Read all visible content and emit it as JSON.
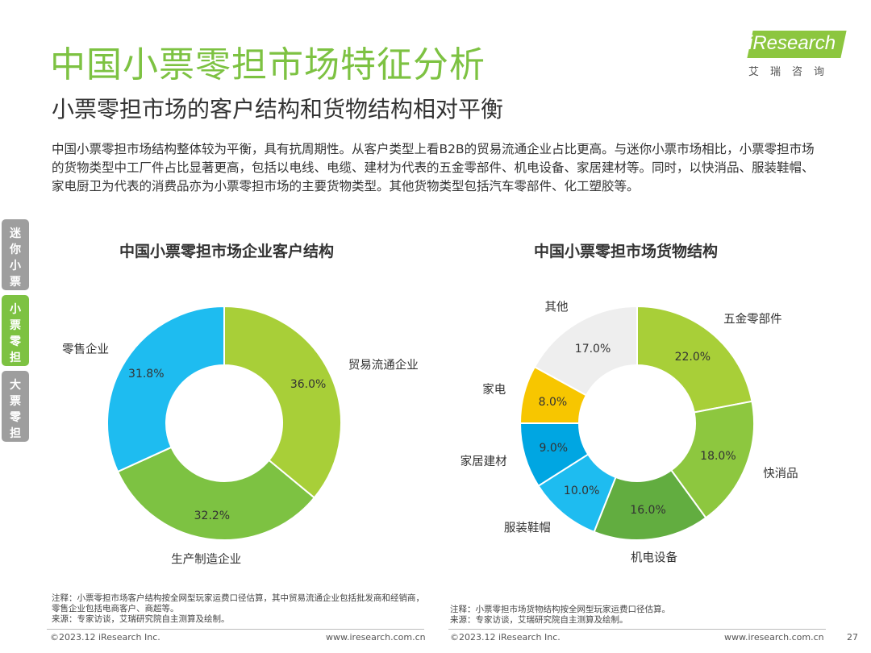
{
  "header": {
    "title": "中国小票零担市场特征分析",
    "subtitle": "小票零担市场的客户结构和货物结构相对平衡",
    "logo_text": "iResearch",
    "logo_cn": "艾瑞咨询"
  },
  "intro": "中国小票零担市场结构整体较为平衡，具有抗周期性。从客户类型上看B2B的贸易流通企业占比更高。与迷你小票市场相比，小票零担市场的货物类型中工厂件占比显著更高，包括以电线、电缆、建材为代表的五金零部件、机电设备、家居建材等。同时，以快消品、服装鞋帽、家电厨卫为代表的消费品亦为小票零担市场的主要货物类型。其他货物类型包括汽车零部件、化工塑胶等。",
  "side_tabs": [
    {
      "chars": [
        "迷",
        "你",
        "小",
        "票"
      ]
    },
    {
      "chars": [
        "小",
        "票",
        "零",
        "担"
      ]
    },
    {
      "chars": [
        "大",
        "票",
        "零",
        "担"
      ]
    }
  ],
  "chart_data": [
    {
      "type": "pie",
      "title": "中国小票零担市场企业客户结构",
      "labels": [
        "贸易流通企业",
        "生产制造企业",
        "零售企业"
      ],
      "values": [
        36.0,
        32.2,
        31.8
      ],
      "value_labels": [
        "36.0%",
        "32.2%",
        "31.8%"
      ],
      "colors": [
        "#a8cf38",
        "#7dc242",
        "#1ebcf0"
      ]
    },
    {
      "type": "pie",
      "title": "中国小票零担市场货物结构",
      "labels": [
        "五金零部件",
        "快消品",
        "机电设备",
        "服装鞋帽",
        "家居建材",
        "家电",
        "其他"
      ],
      "values": [
        22.0,
        18.0,
        16.0,
        10.0,
        9.0,
        8.0,
        17.0
      ],
      "value_labels": [
        "22.0%",
        "18.0%",
        "16.0%",
        "10.0%",
        "9.0%",
        "8.0%",
        "17.0%"
      ],
      "colors": [
        "#a8cf38",
        "#8dc73f",
        "#62ad40",
        "#1ebcf0",
        "#00a6e2",
        "#f7c600",
        "#eeeeee"
      ]
    }
  ],
  "notes": {
    "left": [
      "注释：小票零担市场客户结构按全网型玩家运费口径估算，其中贸易流通企业包括批发商和经销商，零售企业包括电商客户、商超等。",
      "来源：专家访谈，艾瑞研究院自主测算及绘制。"
    ],
    "right": [
      "注释：小票零担市场货物结构按全网型玩家运费口径估算。",
      "来源：专家访谈，艾瑞研究院自主测算及绘制。"
    ]
  },
  "footer": {
    "copyright": "©2023.12 iResearch Inc.",
    "url": "www.iresearch.com.cn",
    "page": "27"
  }
}
